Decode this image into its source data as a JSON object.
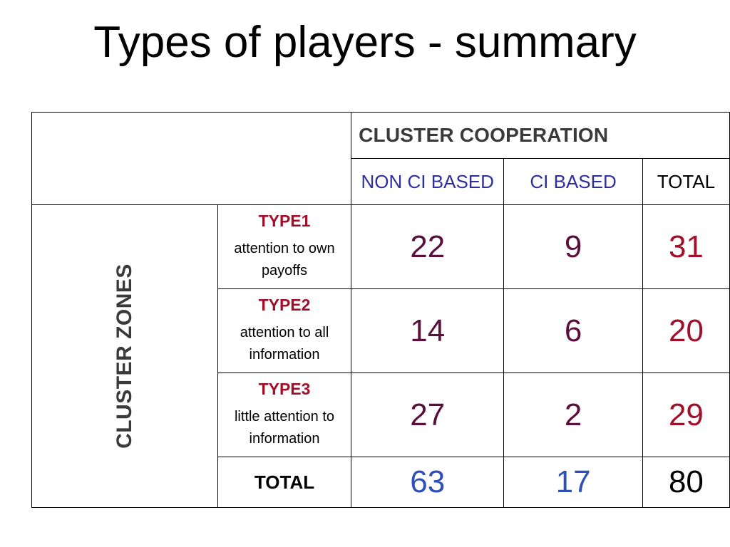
{
  "title": "Types of players - summary",
  "colors": {
    "header_text": "#3a3a3a",
    "column_header_blue": "#2e2e9e",
    "type_name_red": "#a0102a",
    "cell_value_purple": "#5a0f3d",
    "row_total_red": "#a0102a",
    "column_total_blue": "#2e4fb5",
    "grand_total": "#000000"
  },
  "table": {
    "group_header": "CLUSTER COOPERATION",
    "row_group_label": "CLUSTER ZONES",
    "columns": [
      "NON CI BASED",
      "CI BASED",
      "TOTAL"
    ],
    "rows": [
      {
        "type": "TYPE1",
        "desc_line1": "attention to own",
        "desc_line2": "payoffs",
        "values": [
          "22",
          "9"
        ],
        "total": "31"
      },
      {
        "type": "TYPE2",
        "desc_line1": "attention to all",
        "desc_line2": "information",
        "values": [
          "14",
          "6"
        ],
        "total": "20"
      },
      {
        "type": "TYPE3",
        "desc_line1": "little attention to",
        "desc_line2": "information",
        "values": [
          "27",
          "2"
        ],
        "total": "29"
      }
    ],
    "totals_row": {
      "label": "TOTAL",
      "values": [
        "63",
        "17"
      ],
      "grand_total": "80"
    }
  }
}
